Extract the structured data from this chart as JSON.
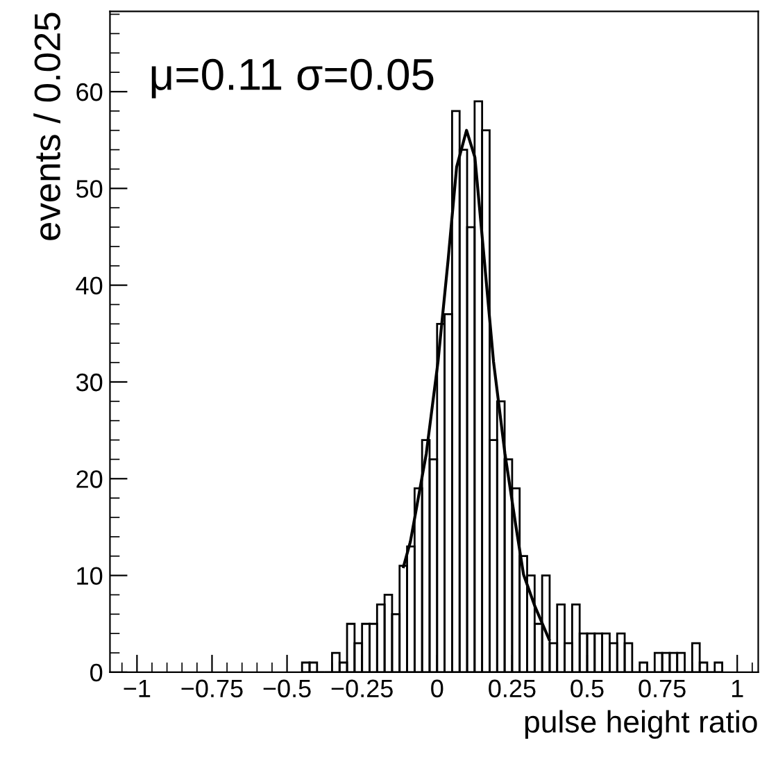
{
  "chart_data": {
    "type": "histogram",
    "xlabel": "pulse height ratio",
    "ylabel": "events / 0.025",
    "annotations": [
      "μ=0.11 σ=0.05"
    ],
    "bins": [
      -0.45,
      -0.425,
      -0.4,
      -0.375,
      -0.35,
      -0.325,
      -0.3,
      -0.275,
      -0.25,
      -0.225,
      -0.2,
      -0.175,
      -0.15,
      -0.125,
      -0.1,
      -0.075,
      -0.05,
      -0.025,
      0,
      0.025,
      0.05,
      0.075,
      0.1,
      0.125,
      0.15,
      0.175,
      0.2,
      0.225,
      0.25,
      0.275,
      0.3,
      0.325,
      0.35,
      0.375,
      0.4,
      0.425,
      0.45,
      0.475,
      0.5,
      0.525,
      0.55,
      0.575,
      0.6,
      0.625,
      0.65,
      0.675,
      0.7,
      0.725,
      0.75,
      0.775,
      0.8,
      0.825,
      0.85,
      0.875,
      0.9,
      0.925,
      0.95
    ],
    "values": [
      1,
      1,
      0,
      0,
      2,
      1,
      5,
      3,
      5,
      5,
      7,
      8,
      6,
      11,
      13,
      19,
      24,
      22,
      36,
      37,
      58,
      54,
      46,
      59,
      56,
      24,
      28,
      22,
      19,
      12,
      10,
      5,
      10,
      3,
      7,
      3,
      7,
      4,
      4,
      4,
      4,
      3,
      4,
      3,
      0,
      1,
      0,
      2,
      2,
      2,
      2,
      0,
      3,
      1,
      0,
      1
    ],
    "color": "#000000",
    "series": [
      {
        "type": "line",
        "color": "#000000",
        "x": [
          -0.112,
          -0.089,
          -0.079,
          -0.036,
          0.003,
          0.037,
          0.065,
          0.098,
          0.126,
          0.157,
          0.188,
          0.226,
          0.262,
          0.288,
          0.326,
          0.373
        ],
        "values": [
          10.9,
          13.5,
          15.2,
          22.6,
          32.1,
          42.7,
          52.2,
          56.0,
          53.2,
          42.7,
          32.1,
          22.6,
          15.2,
          10.1,
          6.8,
          3.4
        ]
      }
    ],
    "xlim": [
      -1.09,
      1.07
    ],
    "ylim": [
      0,
      68.3
    ],
    "xticks": [
      {
        "value": -1,
        "label": "−1"
      },
      {
        "value": -0.75,
        "label": "−0.75"
      },
      {
        "value": -0.5,
        "label": "−0.5"
      },
      {
        "value": -0.25,
        "label": "−0.25"
      },
      0,
      0.25,
      0.5,
      0.75,
      1
    ],
    "yticks": [
      0,
      10,
      20,
      30,
      40,
      50,
      60
    ],
    "grid": false,
    "legend": false
  }
}
